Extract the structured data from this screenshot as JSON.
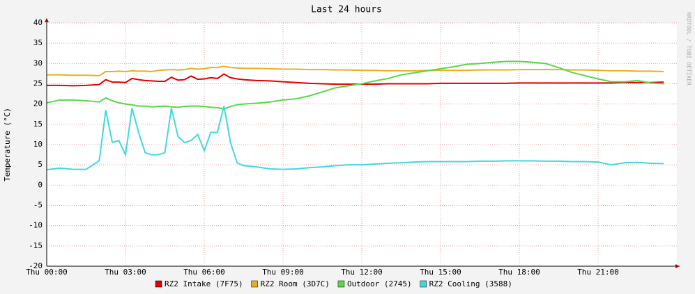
{
  "chart_data": {
    "type": "line",
    "title": "Last 24 hours",
    "y_label": "Temperature (°C)",
    "watermark": "RRDTOOL / TOBI OETIKER",
    "xlim": [
      0,
      24
    ],
    "xticks": [
      {
        "value": 0,
        "label": "Thu 00:00"
      },
      {
        "value": 3,
        "label": "Thu 03:00"
      },
      {
        "value": 6,
        "label": "Thu 06:00"
      },
      {
        "value": 9,
        "label": "Thu 09:00"
      },
      {
        "value": 12,
        "label": "Thu 12:00"
      },
      {
        "value": 15,
        "label": "Thu 15:00"
      },
      {
        "value": 18,
        "label": "Thu 18:00"
      },
      {
        "value": 21,
        "label": "Thu 21:00"
      }
    ],
    "ylim": [
      -20,
      40
    ],
    "yticks": [
      -20,
      -15,
      -10,
      -5,
      0,
      5,
      10,
      15,
      20,
      25,
      30,
      35,
      40
    ],
    "grid": true,
    "legend": "bottom",
    "x": [
      0,
      0.5,
      1,
      1.5,
      2,
      2.25,
      2.5,
      2.75,
      3,
      3.25,
      3.5,
      3.75,
      4,
      4.25,
      4.5,
      4.75,
      5,
      5.25,
      5.5,
      5.75,
      6,
      6.25,
      6.5,
      6.75,
      7,
      7.25,
      7.5,
      8,
      8.5,
      9,
      9.5,
      10,
      10.5,
      11,
      11.5,
      12,
      12.5,
      13,
      13.5,
      14,
      14.5,
      15,
      15.5,
      16,
      16.5,
      17,
      17.5,
      18,
      18.5,
      19,
      19.5,
      20,
      20.5,
      21,
      21.5,
      22,
      22.5,
      23,
      23.5
    ],
    "series": [
      {
        "name": "RZ2 Intake (7F75)",
        "color": "#e00000",
        "values": [
          24.6,
          24.6,
          24.5,
          24.6,
          24.8,
          26,
          25.4,
          25.4,
          25.3,
          26.3,
          26,
          25.8,
          25.7,
          25.6,
          25.6,
          26.6,
          25.9,
          26,
          26.9,
          26.1,
          26.2,
          26.5,
          26.3,
          27.4,
          26.5,
          26.2,
          26,
          25.8,
          25.7,
          25.5,
          25.3,
          25.1,
          25,
          24.9,
          24.9,
          24.9,
          24.9,
          25,
          25,
          25,
          25,
          25.1,
          25.1,
          25.1,
          25.1,
          25.1,
          25.1,
          25.2,
          25.2,
          25.2,
          25.2,
          25.2,
          25.2,
          25.2,
          25.2,
          25.3,
          25.3,
          25.3,
          25.4
        ]
      },
      {
        "name": "RZ2 Room (3D7C)",
        "color": "#e8b020",
        "values": [
          27.2,
          27.2,
          27.1,
          27.1,
          27,
          28,
          28,
          28.1,
          28,
          28.2,
          28.1,
          28.1,
          28,
          28.3,
          28.4,
          28.5,
          28.4,
          28.5,
          28.8,
          28.6,
          28.7,
          29,
          29,
          29.3,
          29,
          28.9,
          28.8,
          28.8,
          28.7,
          28.6,
          28.6,
          28.5,
          28.5,
          28.4,
          28.4,
          28.3,
          28.3,
          28.2,
          28.2,
          28.2,
          28.3,
          28.3,
          28.3,
          28.3,
          28.4,
          28.4,
          28.4,
          28.5,
          28.5,
          28.5,
          28.5,
          28.4,
          28.4,
          28.3,
          28.2,
          28.2,
          28.1,
          28.1,
          28
        ]
      },
      {
        "name": "Outdoor (2745)",
        "color": "#58d848",
        "values": [
          20.3,
          21,
          21,
          20.8,
          20.5,
          21.5,
          20.8,
          20.3,
          20,
          19.8,
          19.5,
          19.5,
          19.3,
          19.4,
          19.5,
          19.3,
          19.2,
          19.4,
          19.5,
          19.5,
          19.4,
          19.2,
          19.1,
          18.8,
          19.4,
          19.8,
          20,
          20.2,
          20.5,
          21,
          21.3,
          22,
          23,
          24,
          24.5,
          25,
          25.7,
          26.3,
          27.2,
          27.7,
          28.2,
          28.7,
          29.2,
          29.8,
          30,
          30.3,
          30.5,
          30.5,
          30.3,
          30,
          29,
          27.8,
          27,
          26.2,
          25.5,
          25.5,
          25.8,
          25.2,
          25
        ]
      },
      {
        "name": "RZ2 Cooling (3588)",
        "color": "#40d8e0",
        "values": [
          3.8,
          4.2,
          3.9,
          3.9,
          6,
          18.5,
          10.5,
          11,
          7.5,
          19,
          13,
          8,
          7.5,
          7.5,
          8,
          19,
          12,
          10.5,
          11,
          12.5,
          8.5,
          13,
          13,
          19.5,
          10.5,
          5.5,
          4.8,
          4.5,
          4,
          3.9,
          4,
          4.3,
          4.5,
          4.8,
          5,
          5,
          5.2,
          5.4,
          5.5,
          5.7,
          5.8,
          5.8,
          5.8,
          5.8,
          5.9,
          5.9,
          6,
          6,
          6,
          5.9,
          5.9,
          5.8,
          5.8,
          5.7,
          5,
          5.5,
          5.6,
          5.4,
          5.3
        ]
      }
    ]
  }
}
